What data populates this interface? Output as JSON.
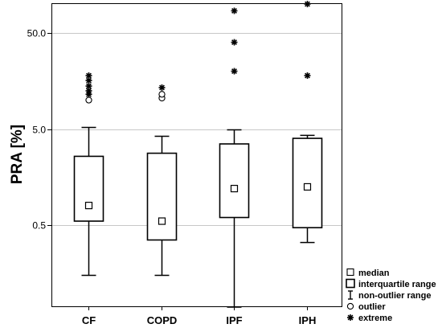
{
  "chart_data": {
    "type": "boxplot",
    "ylabel": "PRA [%]",
    "y_scale": "log",
    "ylim": [
      0.06,
      150
    ],
    "y_ticks": [
      {
        "value": 0.5,
        "label": "0.5"
      },
      {
        "value": 5,
        "label": "5.0"
      },
      {
        "value": 50,
        "label": "50.0"
      }
    ],
    "grid": "horizontal at y ticks",
    "categories": [
      "CF",
      "COPD",
      "IPF",
      "IPH"
    ],
    "boxes": [
      {
        "category": "CF",
        "median": 0.8,
        "q1": 0.55,
        "q3": 2.6,
        "whisker_low": 0.15,
        "whisker_high": 5.2,
        "outliers": [
          10.0
        ],
        "extremes": [
          11.5,
          12.5,
          14.0,
          16.0,
          18.0
        ]
      },
      {
        "category": "COPD",
        "median": 0.55,
        "q1": 0.35,
        "q3": 2.8,
        "whisker_low": 0.15,
        "whisker_high": 4.2,
        "outliers": [
          10.5,
          11.5
        ],
        "extremes": [
          13.5
        ]
      },
      {
        "category": "IPF",
        "median": 1.2,
        "q1": 0.6,
        "q3": 3.5,
        "whisker_low": 0.07,
        "whisker_high": 4.9,
        "outliers": [],
        "extremes": [
          20.0,
          40.0,
          85.0
        ]
      },
      {
        "category": "IPH",
        "median": 1.25,
        "q1": 0.47,
        "q3": 4.0,
        "whisker_low": 0.33,
        "whisker_high": 4.3,
        "outliers": [],
        "extremes": [
          18.0,
          100.0
        ]
      }
    ],
    "legend": {
      "position": "bottom-right, outside plot",
      "entries": [
        {
          "symbol": "median-square",
          "label": "median"
        },
        {
          "symbol": "box",
          "label": "interquartile range"
        },
        {
          "symbol": "whisker",
          "label": "non-outlier range"
        },
        {
          "symbol": "circle",
          "label": "outlier"
        },
        {
          "symbol": "asterisk",
          "label": "extreme"
        }
      ]
    }
  }
}
